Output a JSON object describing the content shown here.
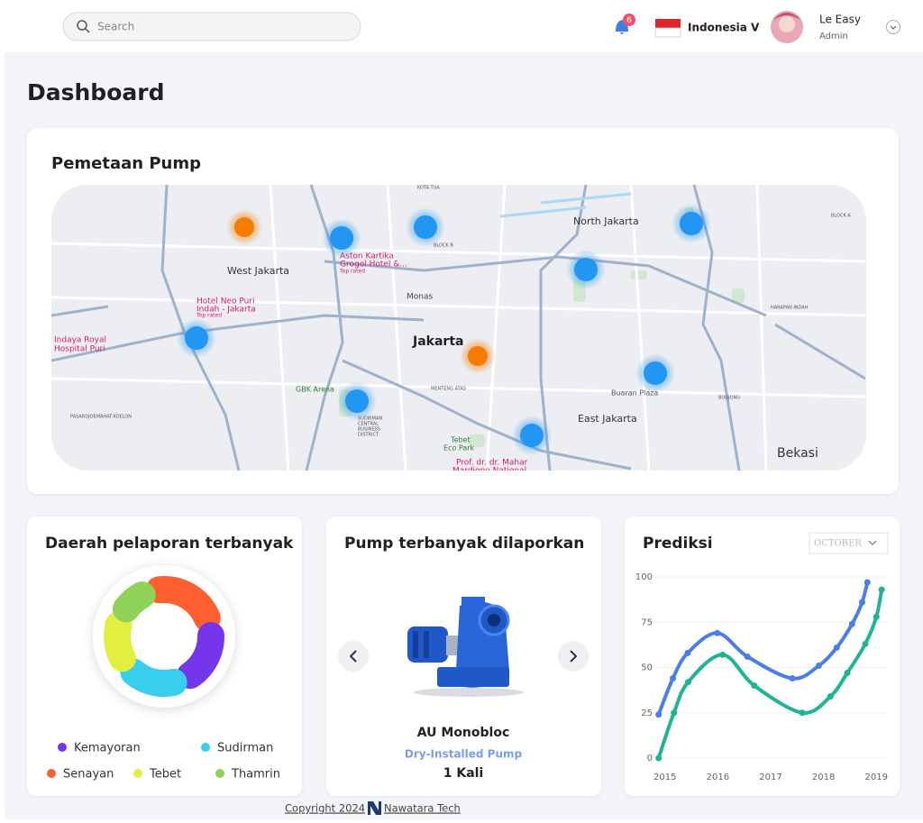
{
  "header": {
    "search_placeholder": "Search",
    "notification_count": "6",
    "country": "Indonesia V",
    "user_name": "Le Easy",
    "user_role": "Admin"
  },
  "page_title": "Dashboard",
  "map": {
    "title": "Pemetaan Pump",
    "labels": [
      "West Jakarta",
      "North Jakarta",
      "Jakarta",
      "East Jakarta",
      "Bekasi",
      "Monas",
      "GBK Arena",
      "Buaran Plaza",
      "Tebet",
      "Eco Park",
      "Aston Kartika",
      "Grogol Hotel &...",
      "Hotel Neo Puri",
      "Indah - Jakarta",
      "Top rated",
      "Top rated",
      "KOTA TUA",
      "BLOCK B",
      "MENTENG ATAS",
      "HARAPAN INDAH",
      "BODJONG",
      "BLOCK A",
      "PASARDJOEMAHAT-KOELON",
      "SUDIRMAN",
      "CENTRAL",
      "BUSINESS",
      "DISTRICT",
      "Prof. dr. dr. Mahar",
      "Mardjono National",
      "Indaya Royal",
      "Hospital Puri"
    ]
  },
  "chart_data": [
    {
      "type": "donut",
      "title": "Daerah pelaporan terbanyak",
      "categories": [
        "Senayan",
        "Kemayoran",
        "Sudirman",
        "Tebet",
        "Thamrin"
      ],
      "values": [
        28,
        22,
        20,
        16,
        10
      ],
      "colors": [
        "#ff5f2e",
        "#7535ea",
        "#38cfee",
        "#e3ef3f",
        "#8fd25a"
      ]
    },
    {
      "type": "line",
      "title": "Prediksi",
      "filter": "OCTOBER",
      "xlim": [
        2014.8,
        2019.2
      ],
      "xticks": [
        2015,
        2016,
        2017,
        2018,
        2019
      ],
      "ylim": [
        0,
        100
      ],
      "yticks": [
        0,
        25,
        50,
        75,
        100
      ],
      "grid": true,
      "series": [
        {
          "color": "#4a7fe6",
          "x": [
            2014.88,
            2015.15,
            2015.43,
            2015.99,
            2016.56,
            2017.41,
            2017.91,
            2018.25,
            2018.54,
            2018.73,
            2018.83
          ],
          "values": [
            24,
            44,
            58,
            69,
            56,
            44,
            51,
            61,
            74,
            86,
            97
          ]
        },
        {
          "color": "#1eb495",
          "x": [
            2014.88,
            2015.17,
            2015.44,
            2016.09,
            2016.69,
            2017.6,
            2018.13,
            2018.45,
            2018.79,
            2019.0,
            2019.1
          ],
          "values": [
            0,
            25,
            42,
            57,
            40,
            25,
            34,
            47,
            63,
            78,
            93
          ]
        }
      ]
    }
  ],
  "product": {
    "title": "Pump terbanyak dilaporkan",
    "name": "AU Monobloc",
    "kind": "Dry-Installed Pump",
    "count": "1 Kali"
  },
  "footer": {
    "copyright": "Copyright 2024",
    "company": "Nawatara Tech"
  }
}
